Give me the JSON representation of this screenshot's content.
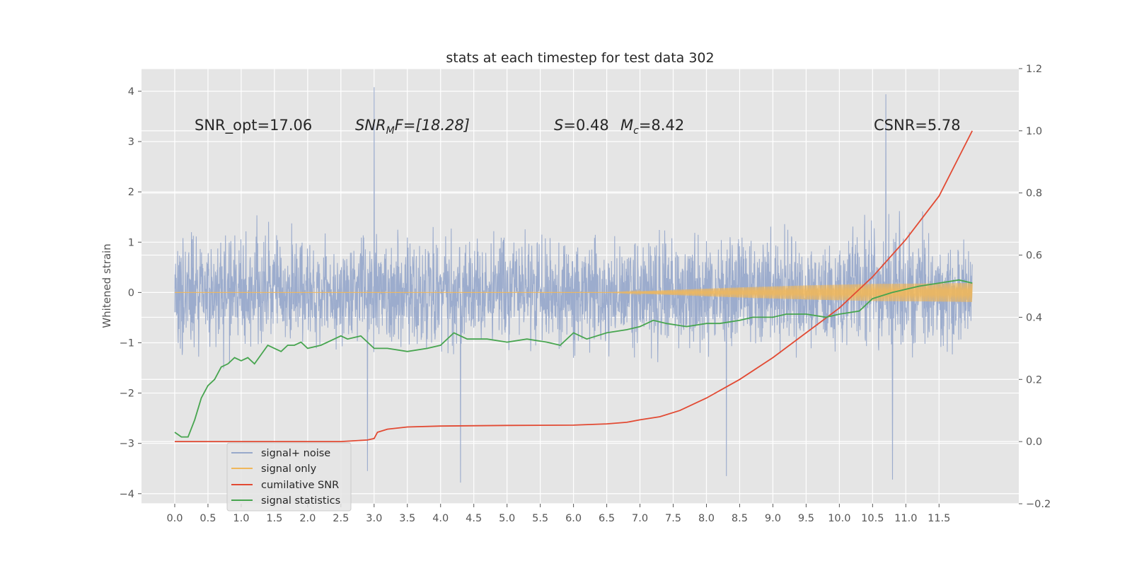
{
  "chart_data": {
    "type": "line",
    "title": "stats at each timestep for test data 302",
    "ylabel": "Whitened strain",
    "xlim": [
      -0.5,
      12.7
    ],
    "ylim": [
      -4.2,
      4.45
    ],
    "y2lim": [
      -0.2,
      1.2
    ],
    "x_ticks": [
      "0.0",
      "0.5",
      "1.0",
      "1.5",
      "2.0",
      "2.5",
      "3.0",
      "3.5",
      "4.0",
      "4.5",
      "5.0",
      "5.5",
      "6.0",
      "6.5",
      "7.0",
      "7.5",
      "8.0",
      "8.5",
      "9.0",
      "9.5",
      "10.0",
      "10.5",
      "11.0",
      "11.5"
    ],
    "y_ticks": [
      "−4",
      "−3",
      "−2",
      "−1",
      "0",
      "1",
      "2",
      "3",
      "4"
    ],
    "y2_ticks": [
      "−0.2",
      "0.0",
      "0.2",
      "0.4",
      "0.6",
      "0.8",
      "1.0",
      "1.2"
    ],
    "grid": true,
    "legend_position": "lower-left",
    "annotations": {
      "snr_opt": "SNR_opt=17.06",
      "snr_mf_sym": "SNR",
      "snr_mf_sub": "M",
      "snr_mf_rest": "F=[18.28]",
      "s_sym": "S",
      "s_val": "=0.48",
      "mc_sym": "M",
      "mc_sub": "c",
      "mc_val": "=8.42",
      "csnr": "CSNR=5.78"
    },
    "series": [
      {
        "name": "signal+ noise",
        "color": "#98a9cb",
        "axis": "left",
        "t_range": [
          0.0,
          12.0
        ],
        "envelope_center": 0.0,
        "envelope_typical": [
          -1.8,
          1.9
        ],
        "peaks": [
          [
            3.0,
            4.08
          ],
          [
            10.7,
            3.94
          ],
          [
            10.8,
            -3.72
          ],
          [
            4.3,
            -3.78
          ],
          [
            8.3,
            -3.65
          ],
          [
            2.9,
            -3.55
          ],
          [
            6.0,
            1.6
          ],
          [
            6.0,
            -1.3
          ]
        ]
      },
      {
        "name": "signal only",
        "color": "#f0b75b",
        "axis": "left",
        "points": [
          [
            0.0,
            0.0
          ],
          [
            3.0,
            0.0
          ],
          [
            3.1,
            0.0
          ],
          [
            6.5,
            0.0
          ],
          [
            7.5,
            0.05
          ],
          [
            8.5,
            0.1
          ],
          [
            9.5,
            0.14
          ],
          [
            10.5,
            0.17
          ],
          [
            11.5,
            0.18
          ],
          [
            12.0,
            0.19
          ]
        ]
      },
      {
        "name": "cumilative SNR",
        "color": "#e24a33",
        "axis": "right",
        "points": [
          [
            0.0,
            0.0
          ],
          [
            1.0,
            0.0
          ],
          [
            2.0,
            0.0
          ],
          [
            2.5,
            0.0
          ],
          [
            2.9,
            0.005
          ],
          [
            3.0,
            0.01
          ],
          [
            3.05,
            0.03
          ],
          [
            3.2,
            0.04
          ],
          [
            3.5,
            0.047
          ],
          [
            4.0,
            0.05
          ],
          [
            5.0,
            0.052
          ],
          [
            6.0,
            0.053
          ],
          [
            6.5,
            0.057
          ],
          [
            6.8,
            0.062
          ],
          [
            7.0,
            0.07
          ],
          [
            7.3,
            0.08
          ],
          [
            7.6,
            0.1
          ],
          [
            8.0,
            0.14
          ],
          [
            8.5,
            0.2
          ],
          [
            9.0,
            0.27
          ],
          [
            9.5,
            0.35
          ],
          [
            10.0,
            0.43
          ],
          [
            10.5,
            0.53
          ],
          [
            11.0,
            0.65
          ],
          [
            11.5,
            0.79
          ],
          [
            12.0,
            1.0
          ]
        ]
      },
      {
        "name": "signal statistics",
        "color": "#47a54f",
        "axis": "right",
        "points": [
          [
            0.0,
            0.03
          ],
          [
            0.1,
            0.015
          ],
          [
            0.2,
            0.015
          ],
          [
            0.3,
            0.07
          ],
          [
            0.4,
            0.14
          ],
          [
            0.5,
            0.18
          ],
          [
            0.6,
            0.2
          ],
          [
            0.7,
            0.24
          ],
          [
            0.8,
            0.25
          ],
          [
            0.9,
            0.27
          ],
          [
            1.0,
            0.26
          ],
          [
            1.1,
            0.27
          ],
          [
            1.2,
            0.25
          ],
          [
            1.3,
            0.28
          ],
          [
            1.4,
            0.31
          ],
          [
            1.5,
            0.3
          ],
          [
            1.6,
            0.29
          ],
          [
            1.7,
            0.31
          ],
          [
            1.8,
            0.31
          ],
          [
            1.9,
            0.32
          ],
          [
            2.0,
            0.3
          ],
          [
            2.2,
            0.31
          ],
          [
            2.4,
            0.33
          ],
          [
            2.5,
            0.34
          ],
          [
            2.6,
            0.33
          ],
          [
            2.8,
            0.34
          ],
          [
            3.0,
            0.3
          ],
          [
            3.2,
            0.3
          ],
          [
            3.5,
            0.29
          ],
          [
            3.8,
            0.3
          ],
          [
            4.0,
            0.31
          ],
          [
            4.2,
            0.35
          ],
          [
            4.4,
            0.33
          ],
          [
            4.7,
            0.33
          ],
          [
            5.0,
            0.32
          ],
          [
            5.3,
            0.33
          ],
          [
            5.6,
            0.32
          ],
          [
            5.8,
            0.31
          ],
          [
            6.0,
            0.35
          ],
          [
            6.2,
            0.33
          ],
          [
            6.5,
            0.35
          ],
          [
            6.8,
            0.36
          ],
          [
            7.0,
            0.37
          ],
          [
            7.2,
            0.39
          ],
          [
            7.4,
            0.38
          ],
          [
            7.7,
            0.37
          ],
          [
            8.0,
            0.38
          ],
          [
            8.2,
            0.38
          ],
          [
            8.5,
            0.39
          ],
          [
            8.7,
            0.4
          ],
          [
            9.0,
            0.4
          ],
          [
            9.2,
            0.41
          ],
          [
            9.5,
            0.41
          ],
          [
            9.8,
            0.4
          ],
          [
            10.0,
            0.41
          ],
          [
            10.3,
            0.42
          ],
          [
            10.5,
            0.46
          ],
          [
            10.8,
            0.48
          ],
          [
            11.0,
            0.49
          ],
          [
            11.2,
            0.5
          ],
          [
            11.5,
            0.51
          ],
          [
            11.8,
            0.52
          ],
          [
            12.0,
            0.51
          ]
        ]
      }
    ]
  }
}
